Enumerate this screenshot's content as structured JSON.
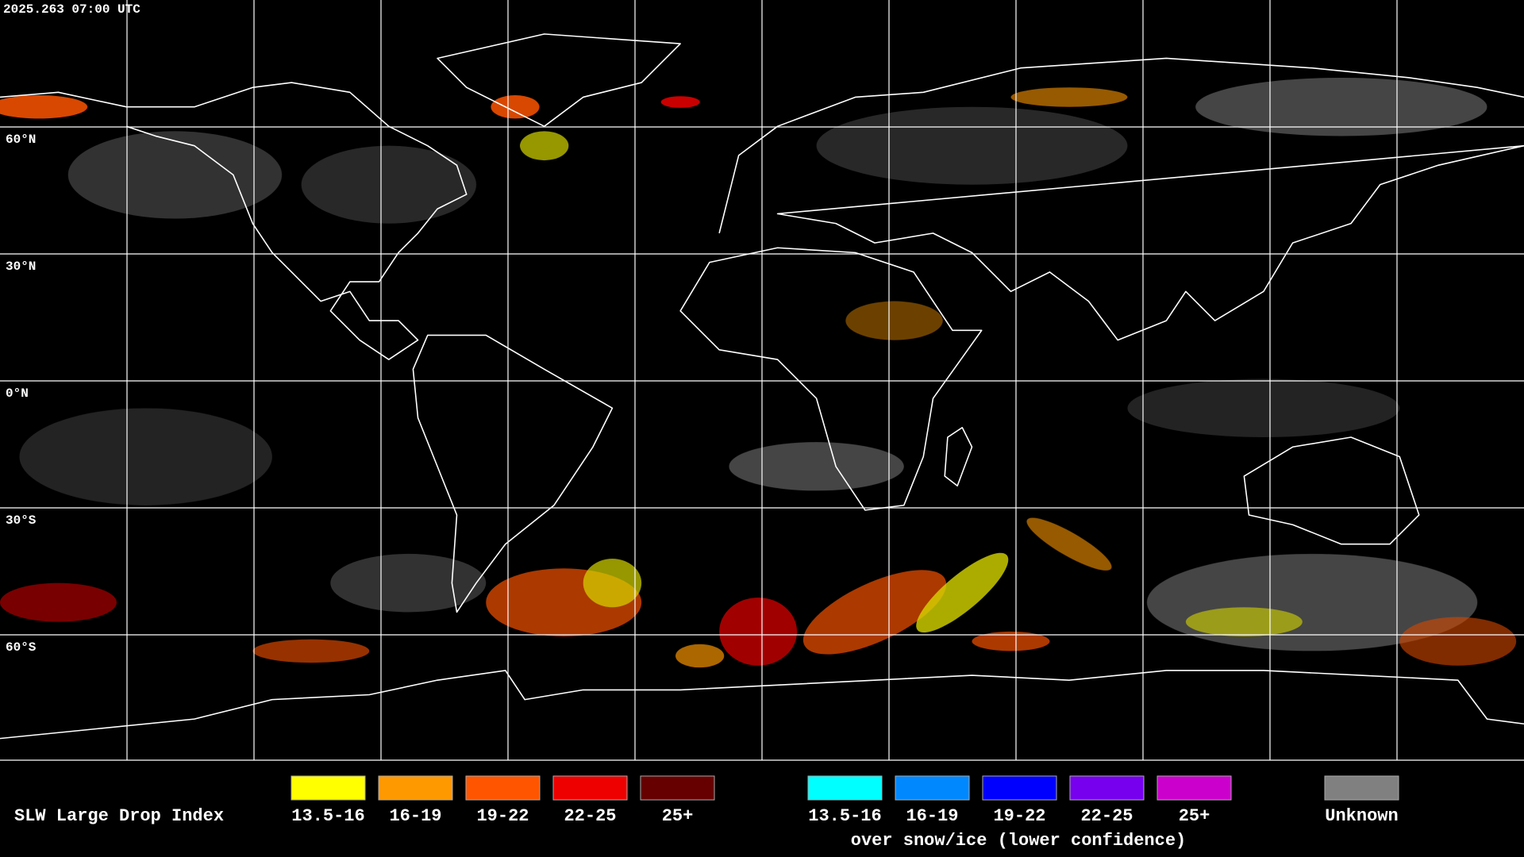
{
  "timestamp": "2025.263 07:00 UTC",
  "lat_labels": [
    "60°N",
    "30°N",
    "0°N",
    "30°S",
    "60°S"
  ],
  "legend": {
    "title": "SLW Large Drop Index",
    "items": [
      {
        "label": "13.5-16",
        "color": "#ffff00"
      },
      {
        "label": "16-19",
        "color": "#ff9900"
      },
      {
        "label": "19-22",
        "color": "#ff5500"
      },
      {
        "label": "22-25",
        "color": "#ee0000"
      },
      {
        "label": "25+",
        "color": "#660000"
      }
    ],
    "snow_items": [
      {
        "label": "13.5-16",
        "color": "#00ffff"
      },
      {
        "label": "16-19",
        "color": "#0088ff"
      },
      {
        "label": "19-22",
        "color": "#0000ff"
      },
      {
        "label": "22-25",
        "color": "#7700ee"
      },
      {
        "label": "25+",
        "color": "#cc00cc"
      }
    ],
    "snow_caption": "over snow/ice (lower confidence)",
    "unknown": {
      "label": "Unknown",
      "color": "#808080"
    }
  }
}
